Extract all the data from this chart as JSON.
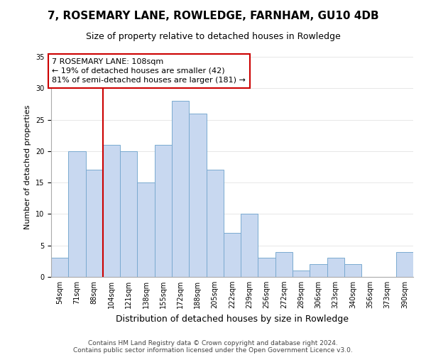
{
  "title": "7, ROSEMARY LANE, ROWLEDGE, FARNHAM, GU10 4DB",
  "subtitle": "Size of property relative to detached houses in Rowledge",
  "xlabel": "Distribution of detached houses by size in Rowledge",
  "ylabel": "Number of detached properties",
  "bin_labels": [
    "54sqm",
    "71sqm",
    "88sqm",
    "104sqm",
    "121sqm",
    "138sqm",
    "155sqm",
    "172sqm",
    "188sqm",
    "205sqm",
    "222sqm",
    "239sqm",
    "256sqm",
    "272sqm",
    "289sqm",
    "306sqm",
    "323sqm",
    "340sqm",
    "356sqm",
    "373sqm",
    "390sqm"
  ],
  "bar_heights": [
    3,
    20,
    17,
    21,
    20,
    15,
    21,
    28,
    26,
    17,
    7,
    10,
    3,
    4,
    1,
    2,
    3,
    2,
    0,
    0,
    4
  ],
  "bar_color": "#c8d8f0",
  "bar_edge_color": "#7aaad0",
  "vline_color": "#cc0000",
  "annotation_text": "7 ROSEMARY LANE: 108sqm\n← 19% of detached houses are smaller (42)\n81% of semi-detached houses are larger (181) →",
  "annotation_box_color": "#ffffff",
  "annotation_box_edge": "#cc0000",
  "ylim": [
    0,
    35
  ],
  "yticks": [
    0,
    5,
    10,
    15,
    20,
    25,
    30,
    35
  ],
  "footer1": "Contains HM Land Registry data © Crown copyright and database right 2024.",
  "footer2": "Contains public sector information licensed under the Open Government Licence v3.0.",
  "background_color": "#ffffff",
  "title_fontsize": 11,
  "subtitle_fontsize": 9,
  "xlabel_fontsize": 9,
  "ylabel_fontsize": 8,
  "tick_fontsize": 7,
  "annotation_fontsize": 8,
  "footer_fontsize": 6.5
}
